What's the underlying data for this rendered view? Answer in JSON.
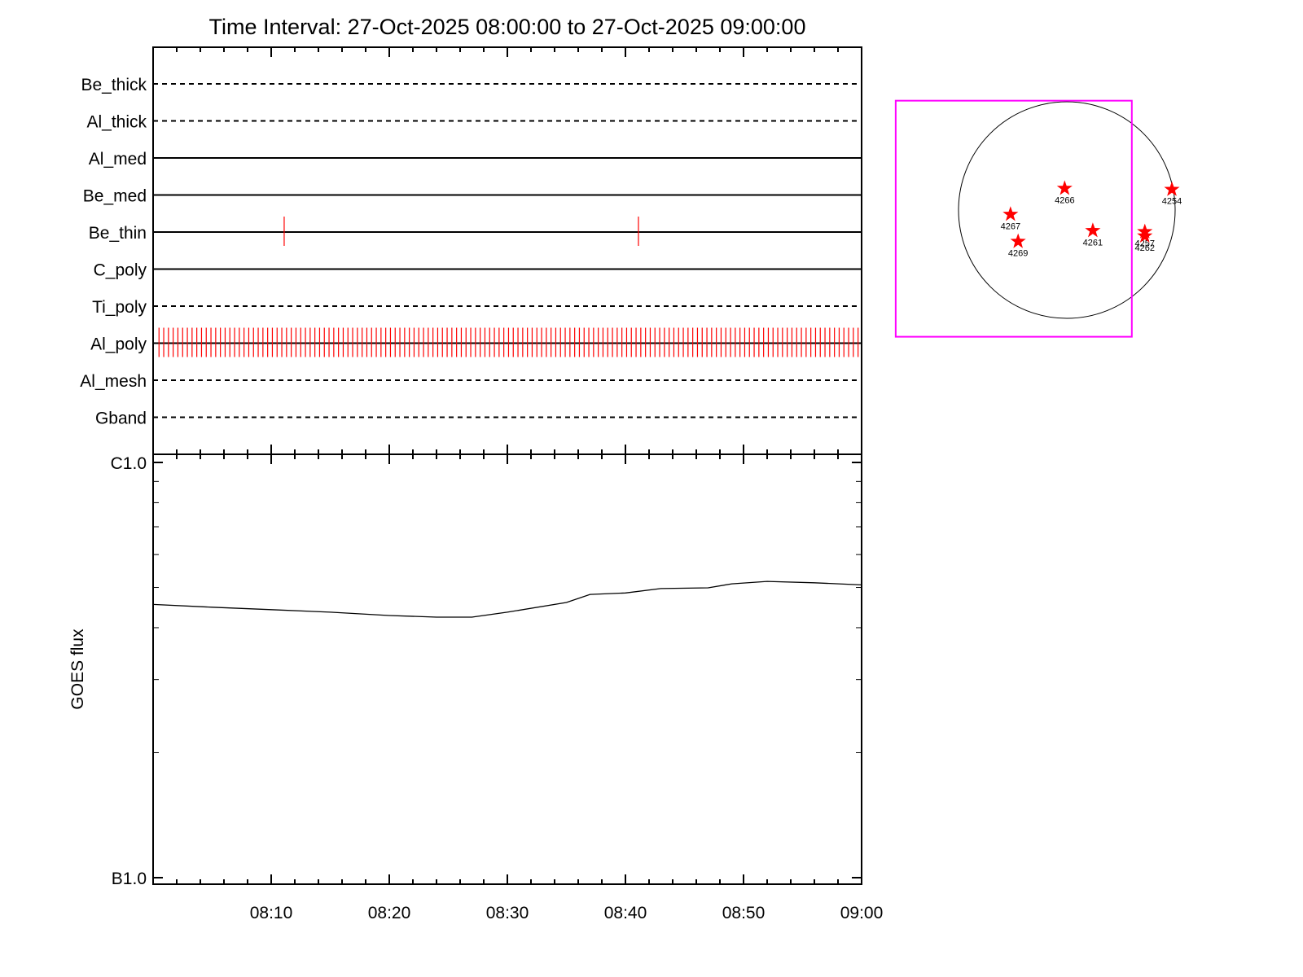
{
  "chart_data": [
    {
      "type": "timeline",
      "title": "Time Interval: 27-Oct-2025 08:00:00 to 27-Oct-2025 09:00:00",
      "event_color": "#ff0000",
      "series": [
        {
          "name": "Be_thick",
          "style": "dashed",
          "events": []
        },
        {
          "name": "Al_thick",
          "style": "dashed",
          "events": []
        },
        {
          "name": "Al_med",
          "style": "solid",
          "events": []
        },
        {
          "name": "Be_med",
          "style": "solid",
          "events": []
        },
        {
          "name": "Be_thin",
          "style": "solid",
          "events": [
            11.1,
            41.1
          ]
        },
        {
          "name": "C_poly",
          "style": "solid",
          "events": []
        },
        {
          "name": "Ti_poly",
          "style": "dashed",
          "events": []
        },
        {
          "name": "Al_poly",
          "style": "solid",
          "events": [
            0.5,
            0.9,
            1.3,
            1.7,
            2.1,
            2.5,
            2.9,
            3.3,
            3.7,
            4.1,
            4.5,
            4.9,
            5.3,
            5.7,
            6.1,
            6.5,
            6.9,
            7.3,
            7.7,
            8.1,
            8.5,
            8.9,
            9.3,
            9.7,
            10.1,
            10.5,
            10.9,
            11.3,
            11.7,
            12.1,
            12.5,
            12.9,
            13.3,
            13.7,
            14.1,
            14.5,
            14.9,
            15.3,
            15.7,
            16.1,
            16.5,
            16.9,
            17.3,
            17.7,
            18.1,
            18.5,
            18.9,
            19.3,
            19.7,
            20.1,
            20.5,
            20.9,
            21.3,
            21.7,
            22.1,
            22.5,
            22.9,
            23.3,
            23.7,
            24.1,
            24.5,
            24.9,
            25.3,
            25.7,
            26.1,
            26.5,
            26.9,
            27.3,
            27.7,
            28.1,
            28.5,
            28.9,
            29.3,
            29.7,
            30.1,
            30.5,
            30.9,
            31.3,
            31.7,
            32.1,
            32.5,
            32.9,
            33.3,
            33.7,
            34.1,
            34.5,
            34.9,
            35.3,
            35.7,
            36.1,
            36.5,
            36.9,
            37.3,
            37.7,
            38.1,
            38.5,
            38.9,
            39.3,
            39.7,
            40.1,
            40.5,
            40.9,
            41.3,
            41.7,
            42.1,
            42.5,
            42.9,
            43.3,
            43.7,
            44.1,
            44.5,
            44.9,
            45.3,
            45.7,
            46.1,
            46.5,
            46.9,
            47.3,
            47.7,
            48.1,
            48.5,
            48.9,
            49.3,
            49.7,
            50.1,
            50.5,
            50.9,
            51.3,
            51.7,
            52.1,
            52.5,
            52.9,
            53.3,
            53.7,
            54.1,
            54.5,
            54.9,
            55.3,
            55.7,
            56.1,
            56.5,
            56.9,
            57.3,
            57.7,
            58.1,
            58.5,
            58.9,
            59.3,
            59.7
          ]
        },
        {
          "name": "Al_mesh",
          "style": "dashed",
          "events": []
        },
        {
          "name": "Gband",
          "style": "dashed",
          "events": []
        }
      ]
    },
    {
      "type": "line",
      "ylabel": "GOES flux",
      "log": true,
      "color": "#000000",
      "xlim": [
        0,
        60
      ],
      "xticks": [
        {
          "value": 10,
          "label": "08:10"
        },
        {
          "value": 20,
          "label": "08:20"
        },
        {
          "value": 30,
          "label": "08:30"
        },
        {
          "value": 40,
          "label": "08:40"
        },
        {
          "value": 50,
          "label": "08:50"
        },
        {
          "value": 60,
          "label": "09:00"
        }
      ],
      "xminorticks": [
        2,
        4,
        6,
        8,
        12,
        14,
        16,
        18,
        22,
        24,
        26,
        28,
        32,
        34,
        36,
        38,
        42,
        44,
        46,
        48,
        52,
        54,
        56,
        58
      ],
      "ylim": [
        1e-07,
        1e-06
      ],
      "yticks": [
        {
          "value": 1e-06,
          "label": "C1.0"
        },
        {
          "value": 1e-07,
          "label": "B1.0"
        }
      ],
      "yminorticks": [
        2e-07,
        3e-07,
        4e-07,
        5e-07,
        6e-07,
        7e-07,
        8e-07,
        9e-07
      ],
      "x": [
        0,
        5,
        10,
        15,
        20,
        24,
        27,
        30,
        35,
        37,
        40,
        43,
        47,
        49,
        52,
        56,
        60
      ],
      "values": [
        4.55e-07,
        4.48e-07,
        4.42e-07,
        4.36e-07,
        4.28e-07,
        4.24e-07,
        4.24e-07,
        4.36e-07,
        4.6e-07,
        4.81e-07,
        4.85e-07,
        4.97e-07,
        4.99e-07,
        5.1e-07,
        5.17e-07,
        5.13e-07,
        5.07e-07
      ]
    },
    {
      "type": "scatter",
      "color": "#ff0000",
      "box_color": "#ff00ff",
      "fov": {
        "xlim": [
          -1.58,
          0.6
        ],
        "ylim": [
          -1.17,
          1.01
        ]
      },
      "labels": [
        "4266",
        "4267",
        "4269",
        "4261",
        "4257",
        "4262",
        "4254"
      ],
      "x": [
        -0.02,
        -0.52,
        -0.45,
        0.24,
        0.72,
        0.72,
        0.97
      ],
      "y": [
        0.2,
        -0.04,
        -0.29,
        -0.19,
        -0.2,
        -0.24,
        0.19
      ]
    }
  ]
}
